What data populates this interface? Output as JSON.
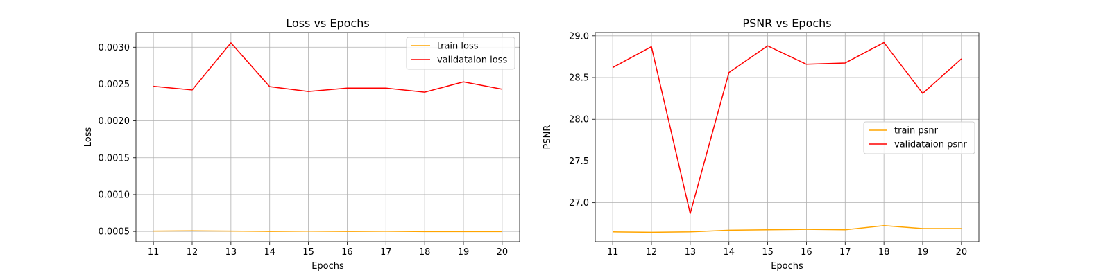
{
  "chart_data": [
    {
      "type": "line",
      "title": "Loss vs Epochs",
      "xlabel": "Epochs",
      "ylabel": "Loss",
      "x": [
        11,
        12,
        13,
        14,
        15,
        16,
        17,
        18,
        19,
        20
      ],
      "xticks": [
        "11",
        "12",
        "13",
        "14",
        "15",
        "16",
        "17",
        "18",
        "19",
        "20"
      ],
      "xlim": [
        10.55,
        20.45
      ],
      "ylim": [
        0.00036,
        0.0032
      ],
      "yticks": [
        0.0005,
        0.001,
        0.0015,
        0.002,
        0.0025,
        0.003
      ],
      "ytick_labels": [
        "0.0005",
        "0.0010",
        "0.0015",
        "0.0020",
        "0.0025",
        "0.0030"
      ],
      "grid": true,
      "legend_position": "upper right",
      "series": [
        {
          "name": "train loss",
          "color": "#ffa500",
          "values": [
            0.000505,
            0.000508,
            0.000505,
            0.0005,
            0.000503,
            0.0005,
            0.000502,
            0.000497,
            0.000498,
            0.000497
          ]
        },
        {
          "name": "validataion loss",
          "color": "#ff0000",
          "values": [
            0.00247,
            0.00242,
            0.00306,
            0.002465,
            0.0024,
            0.002445,
            0.002445,
            0.00239,
            0.00253,
            0.00243
          ]
        }
      ]
    },
    {
      "type": "line",
      "title": "PSNR vs Epochs",
      "xlabel": "Epochs",
      "ylabel": "PSNR",
      "x": [
        11,
        12,
        13,
        14,
        15,
        16,
        17,
        18,
        19,
        20
      ],
      "xticks": [
        "11",
        "12",
        "13",
        "14",
        "15",
        "16",
        "17",
        "18",
        "19",
        "20"
      ],
      "xlim": [
        10.55,
        20.45
      ],
      "ylim": [
        26.532,
        29.04
      ],
      "yticks": [
        27.0,
        27.5,
        28.0,
        28.5,
        29.0
      ],
      "ytick_labels": [
        "27.0",
        "27.5",
        "28.0",
        "28.5",
        "29.0"
      ],
      "grid": true,
      "legend_position": "center right",
      "series": [
        {
          "name": "train psnr",
          "color": "#ffa500",
          "values": [
            26.65,
            26.645,
            26.65,
            26.67,
            26.675,
            26.68,
            26.675,
            26.725,
            26.69,
            26.69
          ]
        },
        {
          "name": "validataion psnr",
          "color": "#ff0000",
          "values": [
            28.62,
            28.87,
            26.87,
            28.56,
            28.88,
            28.66,
            28.675,
            28.92,
            28.31,
            28.725
          ]
        }
      ]
    }
  ]
}
